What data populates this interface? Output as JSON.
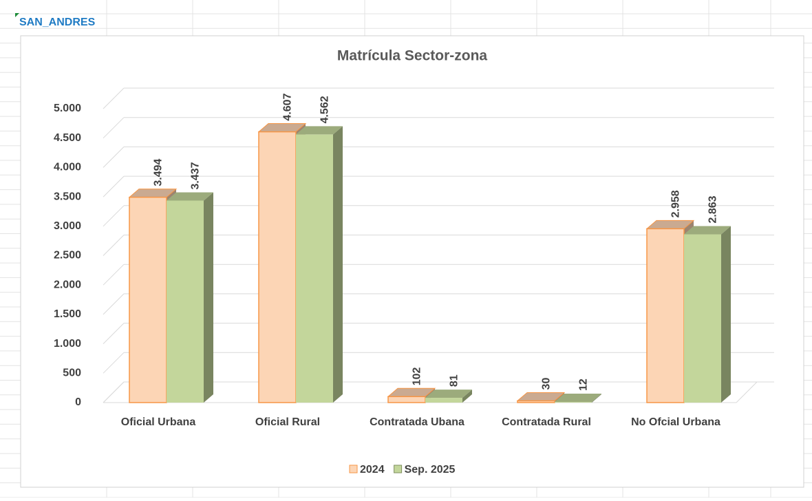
{
  "cell_label": "SAN_ANDRES",
  "chart_data": {
    "type": "bar3d",
    "title": "Matrícula  Sector-zona",
    "categories": [
      "Oficial Urbana",
      "Oficial Rural",
      "Contratada Ubana",
      "Contratada Rural",
      "No Ofcial Urbana"
    ],
    "series": [
      {
        "name": "2024",
        "color": "#fcd5b5",
        "edge": "#f79646",
        "values": [
          3494,
          4607,
          102,
          30,
          2958
        ],
        "value_labels": [
          "3.494",
          "4.607",
          "102",
          "30",
          "2.958"
        ]
      },
      {
        "name": "Sep. 2025",
        "color": "#c3d69b",
        "edge": "#7f8f5f",
        "values": [
          3437,
          4562,
          81,
          12,
          2863
        ],
        "value_labels": [
          "3.437",
          "4.562",
          "81",
          "12",
          "2.863"
        ]
      }
    ],
    "ylim": [
      0,
      5000
    ],
    "yticks": [
      0,
      500,
      {
        "value": 1000,
        "label": "1.000"
      },
      {
        "value": 1500,
        "label": "1.500"
      },
      {
        "value": 2000,
        "label": "2.000"
      },
      {
        "value": 2500,
        "label": "2.500"
      },
      {
        "value": 3000,
        "label": "3.000"
      },
      {
        "value": 3500,
        "label": "3.500"
      },
      {
        "value": 4000,
        "label": "4.000"
      },
      {
        "value": 4500,
        "label": "4.500"
      },
      {
        "value": 5000,
        "label": "5.000"
      }
    ],
    "grid": true,
    "legend": "bottom"
  }
}
